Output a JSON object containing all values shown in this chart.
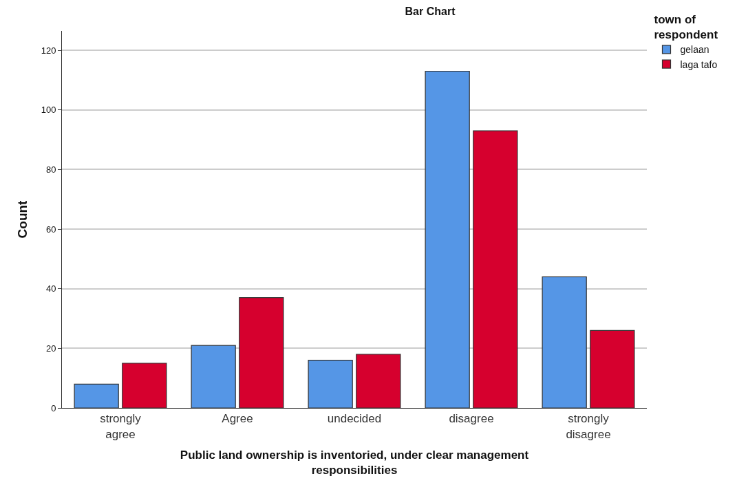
{
  "chart_data": {
    "type": "bar",
    "title": "Bar Chart",
    "xlabel": "Public land ownership is inventoried, under clear management\nresponsibilities",
    "ylabel": "Count",
    "legend_title": "town of\nrespondent",
    "categories": [
      "strongly\nagree",
      "Agree",
      "undecided",
      "disagree",
      "strongly\ndisagree"
    ],
    "series": [
      {
        "name": "gelaan",
        "color": "#5596e6",
        "values": [
          8,
          21,
          16,
          113,
          44
        ]
      },
      {
        "name": "laga tafo",
        "color": "#d6002e",
        "values": [
          15,
          37,
          18,
          93,
          26
        ]
      }
    ],
    "ylim": [
      0,
      126.5
    ],
    "yticks": [
      0,
      20,
      40,
      60,
      80,
      100,
      120
    ],
    "grid": "y",
    "legend": "top right"
  }
}
